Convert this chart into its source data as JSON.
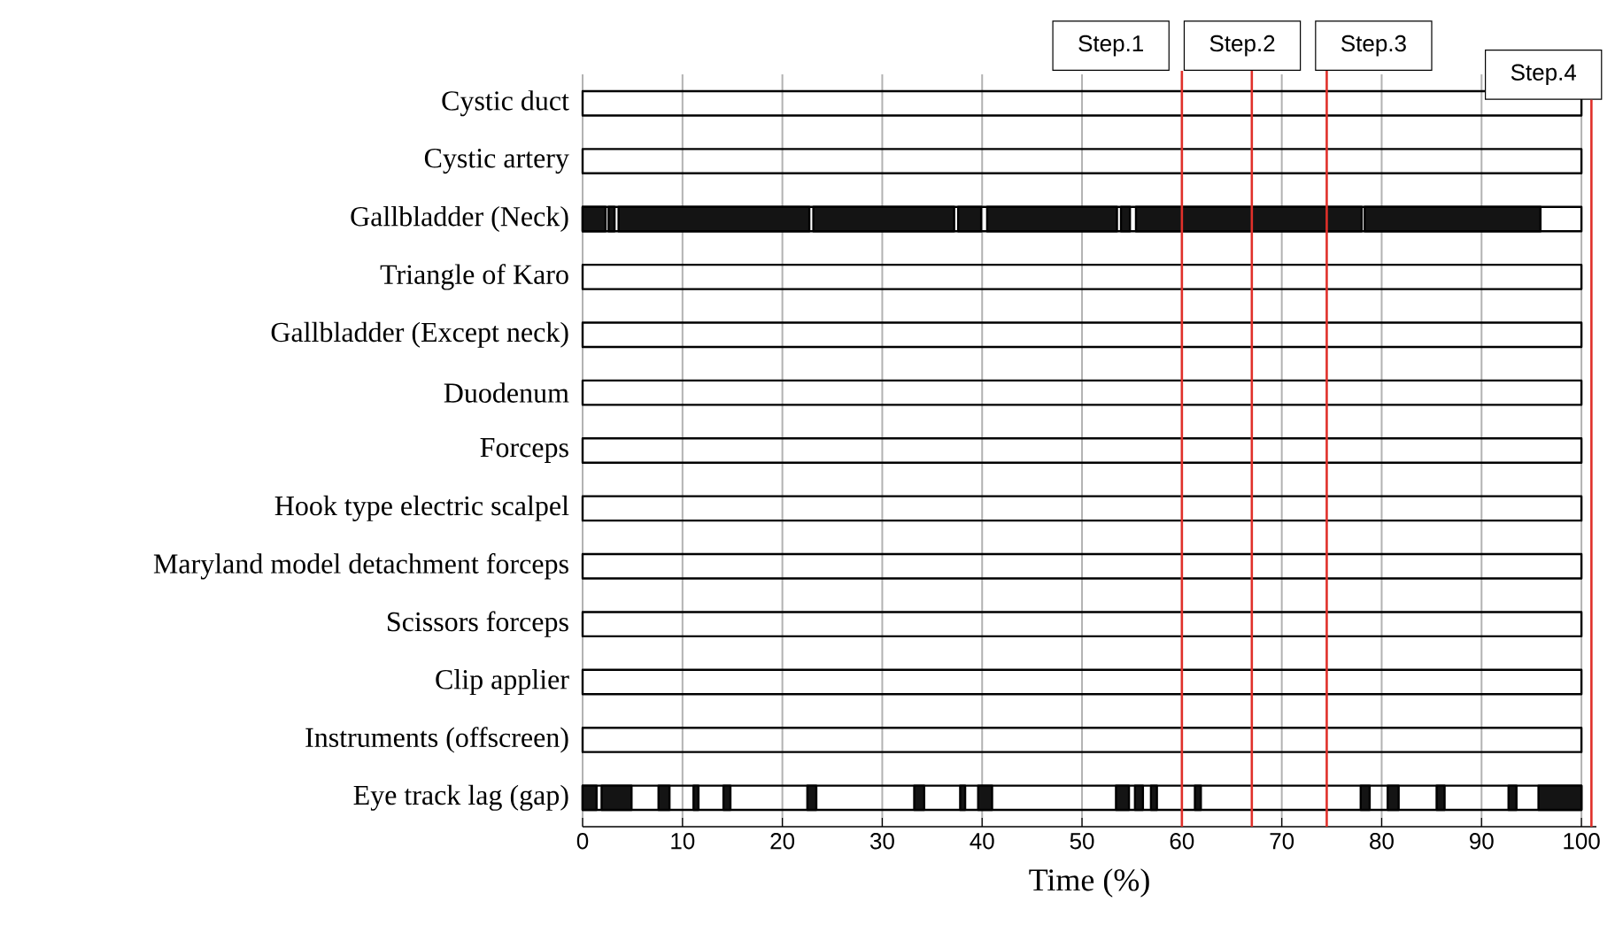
{
  "chart_data": {
    "type": "bar",
    "orientation": "horizontal",
    "xlabel": "Time (%)",
    "categories": [
      "Cystic duct",
      "Cystic artery",
      "Gallbladder (Neck)",
      "Triangle of Karo",
      "Gallbladder (Except neck)",
      "Duodenum",
      "Forceps",
      "Hook type electric scalpel",
      "Maryland model detachment   forceps",
      "Scissors   forceps",
      "Clip applier",
      "Instruments (offscreen)",
      "Eye track lag (gap)"
    ],
    "xlim": [
      0,
      101.5
    ],
    "xticks": [
      0,
      10,
      20,
      30,
      40,
      50,
      60,
      70,
      80,
      90,
      100
    ],
    "grid": "x",
    "series": [
      {
        "color": null,
        "base": [
          0,
          0,
          0,
          0,
          0,
          0,
          0,
          0,
          0,
          0,
          0,
          0,
          0
        ],
        "values": [
          100,
          100,
          100,
          100,
          100,
          100,
          100,
          100,
          100,
          100,
          100,
          100,
          100
        ]
      },
      {
        "color": "#141414",
        "base": [
          null,
          null,
          0,
          null,
          null,
          null,
          null,
          null,
          null,
          null,
          null,
          null,
          0
        ],
        "values": [
          null,
          null,
          2.3,
          null,
          null,
          null,
          null,
          null,
          null,
          null,
          null,
          null,
          1.4
        ]
      },
      {
        "color": "#141414",
        "base": [
          null,
          null,
          2.6,
          null,
          null,
          null,
          null,
          null,
          null,
          null,
          null,
          null,
          1.9
        ],
        "values": [
          null,
          null,
          0.6,
          null,
          null,
          null,
          null,
          null,
          null,
          null,
          null,
          null,
          3.0
        ]
      },
      {
        "color": "#141414",
        "base": [
          null,
          null,
          3.6,
          null,
          null,
          null,
          null,
          null,
          null,
          null,
          null,
          null,
          7.6
        ],
        "values": [
          null,
          null,
          19.1,
          null,
          null,
          null,
          null,
          null,
          null,
          null,
          null,
          null,
          1.1
        ]
      },
      {
        "color": "#141414",
        "base": [
          null,
          null,
          23.1,
          null,
          null,
          null,
          null,
          null,
          null,
          null,
          null,
          null,
          11.1
        ],
        "values": [
          null,
          null,
          14.1,
          null,
          null,
          null,
          null,
          null,
          null,
          null,
          null,
          null,
          0.5
        ]
      },
      {
        "color": "#141414",
        "base": [
          null,
          null,
          37.6,
          null,
          null,
          null,
          null,
          null,
          null,
          null,
          null,
          null,
          14.1
        ],
        "values": [
          null,
          null,
          2.3,
          null,
          null,
          null,
          null,
          null,
          null,
          null,
          null,
          null,
          0.7
        ]
      },
      {
        "color": "#141414",
        "base": [
          null,
          null,
          40.5,
          null,
          null,
          null,
          null,
          null,
          null,
          null,
          null,
          null,
          22.5
        ],
        "values": [
          null,
          null,
          13.0,
          null,
          null,
          null,
          null,
          null,
          null,
          null,
          null,
          null,
          0.9
        ]
      },
      {
        "color": "#141414",
        "base": [
          null,
          null,
          53.9,
          null,
          null,
          null,
          null,
          null,
          null,
          null,
          null,
          null,
          33.2
        ],
        "values": [
          null,
          null,
          0.9,
          null,
          null,
          null,
          null,
          null,
          null,
          null,
          null,
          null,
          1.0
        ]
      },
      {
        "color": "#141414",
        "base": [
          null,
          null,
          55.4,
          null,
          null,
          null,
          null,
          null,
          null,
          null,
          null,
          null,
          37.8
        ],
        "values": [
          null,
          null,
          22.6,
          null,
          null,
          null,
          null,
          null,
          null,
          null,
          null,
          null,
          0.5
        ]
      },
      {
        "color": "#141414",
        "base": [
          null,
          null,
          78.3,
          null,
          null,
          null,
          null,
          null,
          null,
          null,
          null,
          null,
          39.6
        ],
        "values": [
          null,
          null,
          17.6,
          null,
          null,
          null,
          null,
          null,
          null,
          null,
          null,
          null,
          1.4
        ]
      },
      {
        "color": "#141414",
        "base": [
          null,
          null,
          null,
          null,
          null,
          null,
          null,
          null,
          null,
          null,
          null,
          null,
          53.4
        ],
        "values": [
          null,
          null,
          null,
          null,
          null,
          null,
          null,
          null,
          null,
          null,
          null,
          null,
          1.3
        ]
      },
      {
        "color": "#141414",
        "base": [
          null,
          null,
          null,
          null,
          null,
          null,
          null,
          null,
          null,
          null,
          null,
          null,
          55.3
        ],
        "values": [
          null,
          null,
          null,
          null,
          null,
          null,
          null,
          null,
          null,
          null,
          null,
          null,
          0.8
        ]
      },
      {
        "color": "#141414",
        "base": [
          null,
          null,
          null,
          null,
          null,
          null,
          null,
          null,
          null,
          null,
          null,
          null,
          56.9
        ],
        "values": [
          null,
          null,
          null,
          null,
          null,
          null,
          null,
          null,
          null,
          null,
          null,
          null,
          0.6
        ]
      },
      {
        "color": "#141414",
        "base": [
          null,
          null,
          null,
          null,
          null,
          null,
          null,
          null,
          null,
          null,
          null,
          null,
          61.3
        ],
        "values": [
          null,
          null,
          null,
          null,
          null,
          null,
          null,
          null,
          null,
          null,
          null,
          null,
          0.6
        ]
      },
      {
        "color": "#141414",
        "base": [
          null,
          null,
          null,
          null,
          null,
          null,
          null,
          null,
          null,
          null,
          null,
          null,
          77.9
        ],
        "values": [
          null,
          null,
          null,
          null,
          null,
          null,
          null,
          null,
          null,
          null,
          null,
          null,
          0.9
        ]
      },
      {
        "color": "#141414",
        "base": [
          null,
          null,
          null,
          null,
          null,
          null,
          null,
          null,
          null,
          null,
          null,
          null,
          80.6
        ],
        "values": [
          null,
          null,
          null,
          null,
          null,
          null,
          null,
          null,
          null,
          null,
          null,
          null,
          1.1
        ]
      },
      {
        "color": "#141414",
        "base": [
          null,
          null,
          null,
          null,
          null,
          null,
          null,
          null,
          null,
          null,
          null,
          null,
          85.5
        ],
        "values": [
          null,
          null,
          null,
          null,
          null,
          null,
          null,
          null,
          null,
          null,
          null,
          null,
          0.8
        ]
      },
      {
        "color": "#141414",
        "base": [
          null,
          null,
          null,
          null,
          null,
          null,
          null,
          null,
          null,
          null,
          null,
          null,
          92.7
        ],
        "values": [
          null,
          null,
          null,
          null,
          null,
          null,
          null,
          null,
          null,
          null,
          null,
          null,
          0.8
        ]
      },
      {
        "color": "#141414",
        "base": [
          null,
          null,
          null,
          null,
          null,
          null,
          null,
          null,
          null,
          null,
          null,
          null,
          95.7
        ],
        "values": [
          null,
          null,
          null,
          null,
          null,
          null,
          null,
          null,
          null,
          null,
          null,
          null,
          4.3
        ]
      }
    ],
    "ref_lines": [
      {
        "axis": "x",
        "value": 60,
        "label": "Step.1",
        "color": "#e0302a"
      },
      {
        "axis": "x",
        "value": 67,
        "label": "Step.2",
        "color": "#e0302a"
      },
      {
        "axis": "x",
        "value": 74.5,
        "label": "Step.3",
        "color": "#e0302a"
      },
      {
        "axis": "x",
        "value": 101,
        "label": "Step.4",
        "color": "#e0302a"
      }
    ]
  }
}
